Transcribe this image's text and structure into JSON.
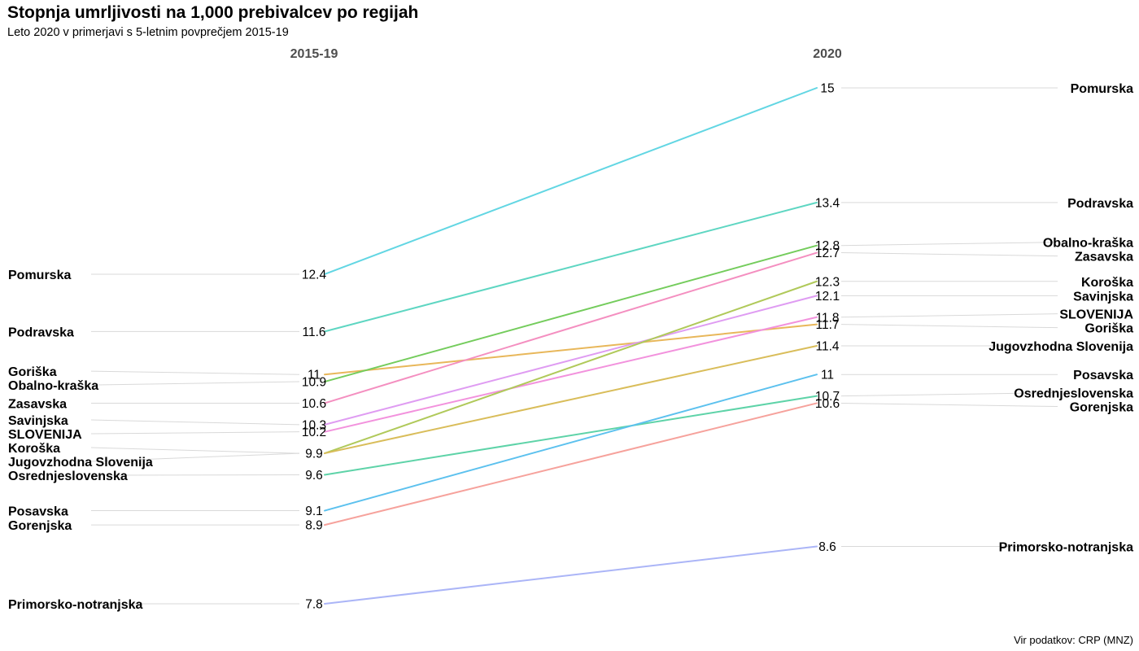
{
  "chart_data": {
    "type": "line",
    "title": "Stopnja umrljivosti na 1,000 prebivalcev po regijah",
    "subtitle": "Leto 2020 v primerjavi s 5-letnim povprečjem 2015-19",
    "caption": "Vir podatkov: CRP (MNZ)",
    "x_labels": [
      "2015-19",
      "2020"
    ],
    "ylim": [
      7.8,
      15
    ],
    "grid": false,
    "series": [
      {
        "name": "Pomurska",
        "values": [
          12.4,
          15
        ],
        "color": "#62d6e3"
      },
      {
        "name": "Podravska",
        "values": [
          11.6,
          13.4
        ],
        "color": "#5ed6c2"
      },
      {
        "name": "Goriška",
        "values": [
          11,
          11.7
        ],
        "color": "#e8b75a"
      },
      {
        "name": "Obalno-kraška",
        "values": [
          10.9,
          12.8
        ],
        "color": "#74cc5c"
      },
      {
        "name": "Zasavska",
        "values": [
          10.6,
          12.7
        ],
        "color": "#f48fc0"
      },
      {
        "name": "Savinjska",
        "values": [
          10.3,
          12.1
        ],
        "color": "#df9cf2"
      },
      {
        "name": "SLOVENIJA",
        "values": [
          10.2,
          11.8
        ],
        "color": "#f292dd"
      },
      {
        "name": "Koroška",
        "values": [
          9.9,
          12.3
        ],
        "color": "#b0c95a"
      },
      {
        "name": "Jugovzhodna Slovenija",
        "values": [
          9.9,
          11.4
        ],
        "color": "#d9bd5a"
      },
      {
        "name": "Osrednjeslovenska",
        "values": [
          9.6,
          10.7
        ],
        "color": "#5ed3a8"
      },
      {
        "name": "Posavska",
        "values": [
          9.1,
          11
        ],
        "color": "#5cc1ee"
      },
      {
        "name": "Gorenjska",
        "values": [
          8.9,
          10.6
        ],
        "color": "#f6a29c"
      },
      {
        "name": "Primorsko-notranjska",
        "values": [
          7.8,
          8.6
        ],
        "color": "#abb5f7"
      }
    ],
    "left_value_labels": [
      "12.4",
      "11.6",
      "11",
      "10.9",
      "10.6",
      "10.3",
      "10.2",
      "9.9",
      "9.6",
      "9.1",
      "8.9",
      "7.8"
    ],
    "right_value_labels": [
      "15",
      "13.4",
      "12.8",
      "12.7",
      "12.3",
      "12.1",
      "11.8",
      "11.7",
      "11.4",
      "11",
      "10.7",
      "10.6",
      "8.6"
    ]
  }
}
